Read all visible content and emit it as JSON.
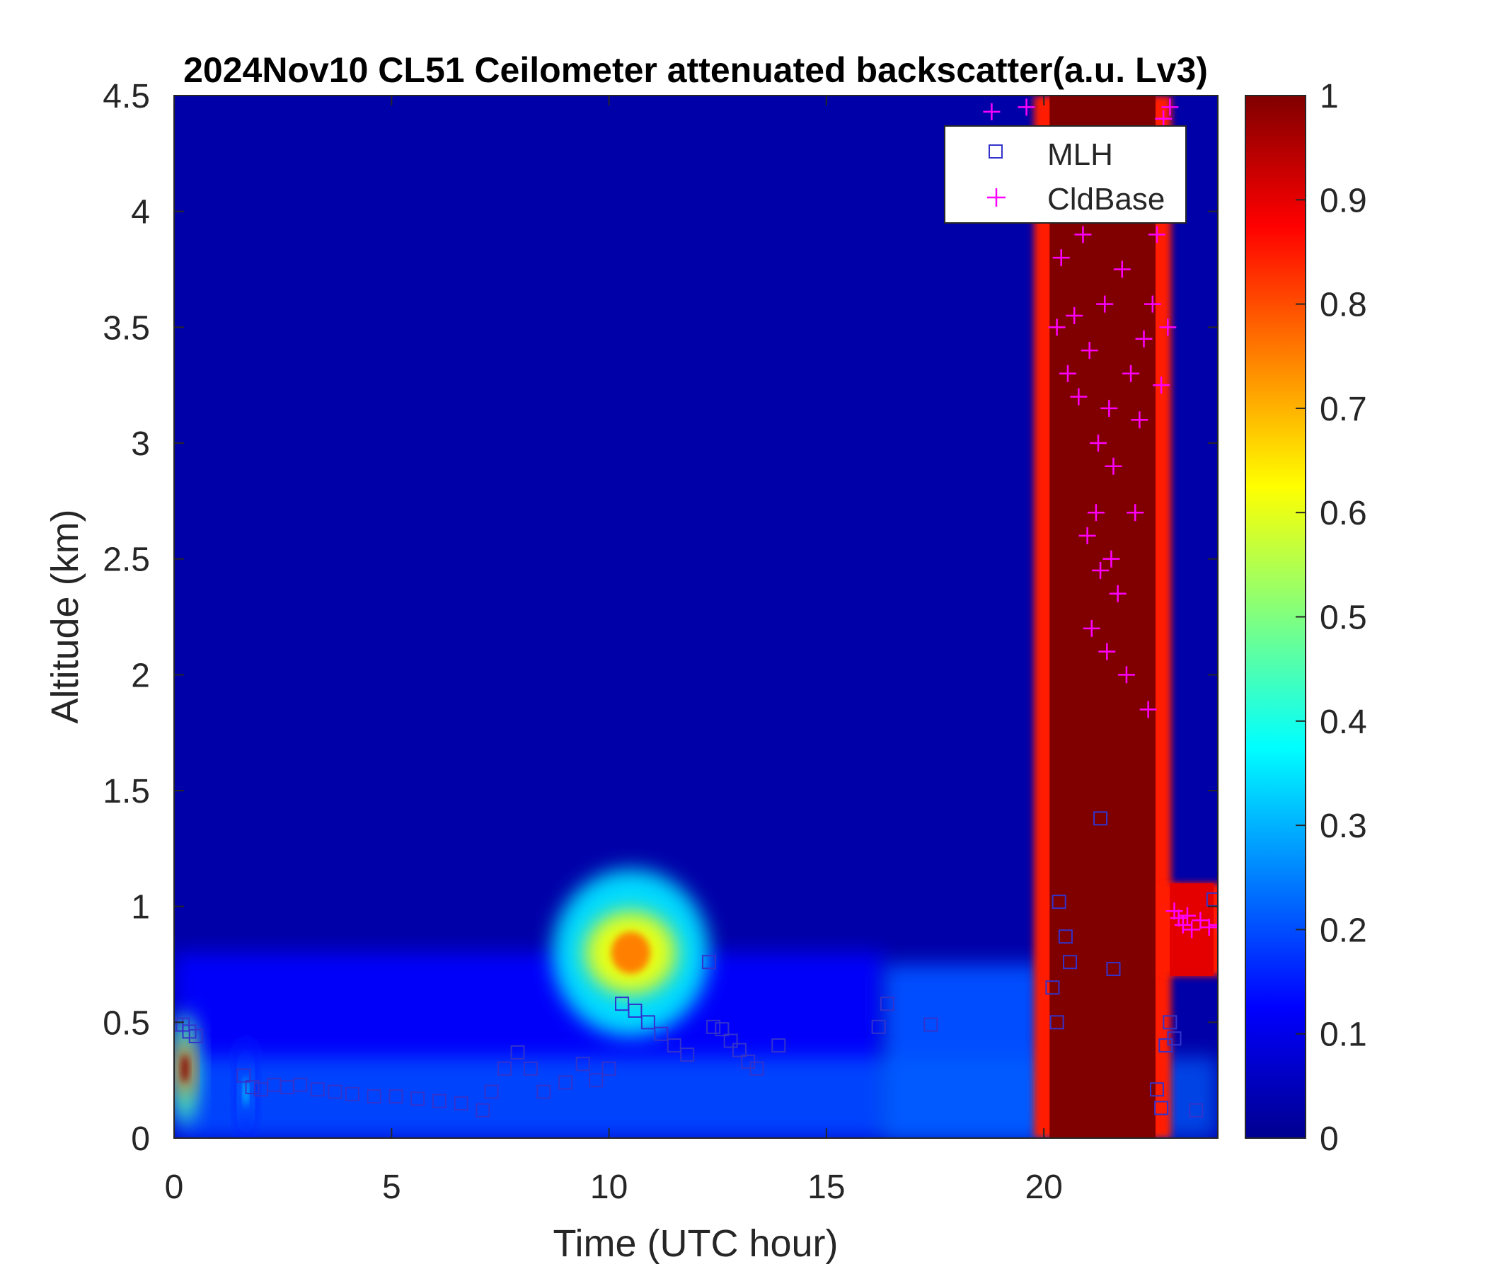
{
  "chart_data": {
    "type": "heatmap",
    "title": "2024Nov10 CL51 Ceilometer attenuated backscatter(a.u. Lv3)",
    "xlabel": "Time (UTC hour)",
    "ylabel": "Altitude (km)",
    "xlim": [
      0,
      24
    ],
    "ylim": [
      0,
      4.5
    ],
    "xticks": [
      0,
      5,
      10,
      15,
      20
    ],
    "yticks": [
      0,
      0.5,
      1,
      1.5,
      2,
      2.5,
      3,
      3.5,
      4,
      4.5
    ],
    "colorbar": {
      "range": [
        0,
        1
      ],
      "ticks": [
        0,
        0.1,
        0.2,
        0.3,
        0.4,
        0.5,
        0.6,
        0.7,
        0.8,
        0.9,
        1
      ],
      "colormap": "jet"
    },
    "legend": {
      "placement": "top-right",
      "entries": [
        "MLH",
        "CldBase"
      ]
    },
    "field": {
      "background": 0.04,
      "features": [
        {
          "kind": "boundary_layer",
          "t_start": 0,
          "t_end": 16.3,
          "top_km": 0.8,
          "value": 0.12
        },
        {
          "kind": "boundary_layer",
          "t_start": 16.3,
          "t_end": 20,
          "top_km": 0.75,
          "value": 0.2
        },
        {
          "kind": "plume",
          "t": [
            0,
            0.5
          ],
          "z": [
            0.1,
            0.5
          ],
          "value": 1.0
        },
        {
          "kind": "plume",
          "t": [
            1.5,
            1.8
          ],
          "z": [
            0,
            0.4
          ],
          "value": 0.35
        },
        {
          "kind": "plume",
          "t": [
            9,
            12
          ],
          "z": [
            0.5,
            1.1
          ],
          "value": 0.75
        },
        {
          "kind": "cloud",
          "t": [
            19.9,
            22.8
          ],
          "z": [
            0,
            4.5
          ],
          "value": 1.0
        },
        {
          "kind": "cloud",
          "t": [
            22.8,
            24
          ],
          "z": [
            0.7,
            1.1
          ],
          "value": 0.9
        }
      ]
    },
    "series": [
      {
        "name": "MLH",
        "marker": "square",
        "color": "#3333cc",
        "x": [
          0.05,
          0.2,
          0.35,
          0.5,
          1.6,
          1.8,
          2.0,
          2.3,
          2.6,
          2.9,
          3.3,
          3.7,
          4.1,
          4.6,
          5.1,
          5.6,
          6.1,
          6.6,
          7.1,
          7.3,
          7.6,
          7.9,
          8.2,
          8.5,
          9.0,
          9.4,
          9.7,
          10.0,
          10.3,
          10.6,
          10.9,
          11.2,
          11.5,
          11.8,
          12.3,
          12.4,
          12.6,
          12.8,
          13.0,
          13.2,
          13.4,
          13.9,
          16.2,
          16.4,
          17.4,
          20.2,
          20.3,
          20.35,
          20.5,
          20.6,
          21.3,
          21.6,
          22.6,
          22.7,
          22.8,
          22.9,
          23.0,
          23.5,
          23.9
        ],
        "y": [
          0.49,
          0.49,
          0.46,
          0.44,
          0.27,
          0.22,
          0.21,
          0.23,
          0.22,
          0.23,
          0.21,
          0.2,
          0.19,
          0.18,
          0.18,
          0.17,
          0.16,
          0.15,
          0.12,
          0.2,
          0.3,
          0.37,
          0.3,
          0.2,
          0.24,
          0.32,
          0.25,
          0.3,
          0.58,
          0.55,
          0.5,
          0.45,
          0.4,
          0.36,
          0.76,
          0.48,
          0.47,
          0.42,
          0.38,
          0.33,
          0.3,
          0.4,
          0.48,
          0.58,
          0.49,
          0.65,
          0.5,
          1.02,
          0.87,
          0.76,
          1.38,
          0.73,
          0.21,
          0.13,
          0.4,
          0.5,
          0.43,
          0.12,
          1.03
        ]
      },
      {
        "name": "CldBase",
        "marker": "plus",
        "color": "#ff00ff",
        "x": [
          18.8,
          19.6,
          20.3,
          20.4,
          20.55,
          20.6,
          20.7,
          20.8,
          20.9,
          21.0,
          21.05,
          21.1,
          21.2,
          21.25,
          21.3,
          21.4,
          21.45,
          21.5,
          21.55,
          21.6,
          21.7,
          21.8,
          21.9,
          22.0,
          22.1,
          22.2,
          22.3,
          22.4,
          22.5,
          22.6,
          22.7,
          22.75,
          22.8,
          22.85,
          22.9,
          23.0,
          23.1,
          23.2,
          23.3,
          23.4,
          23.6,
          23.8,
          24.0
        ],
        "y": [
          4.43,
          4.45,
          3.5,
          3.8,
          3.3,
          4.1,
          3.55,
          3.2,
          3.9,
          2.6,
          3.4,
          2.2,
          2.7,
          3.0,
          2.45,
          3.6,
          2.1,
          3.15,
          2.5,
          2.9,
          2.35,
          3.75,
          2.0,
          3.3,
          2.7,
          3.1,
          3.45,
          1.85,
          3.6,
          3.9,
          3.25,
          4.4,
          4.0,
          3.5,
          4.45,
          0.98,
          0.95,
          0.92,
          0.96,
          0.9,
          0.94,
          0.91,
          0.92
        ]
      }
    ]
  }
}
